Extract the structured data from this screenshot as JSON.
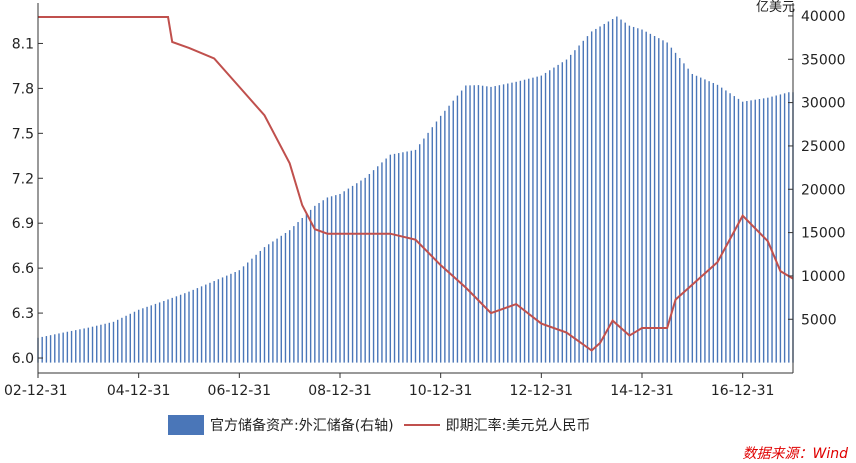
{
  "chart_data": {
    "type": "bar+line",
    "unit_right": "亿美元",
    "source": "数据来源：Wind",
    "legend": {
      "bars": "官方储备资产:外汇储备(右轴)",
      "line": "即期汇率:美元兑人民币"
    },
    "x_ticks": [
      "02-12-31",
      "04-12-31",
      "06-12-31",
      "08-12-31",
      "10-12-31",
      "12-12-31",
      "14-12-31",
      "16-12-31"
    ],
    "y_left": {
      "ticks": [
        6.0,
        6.3,
        6.6,
        6.9,
        7.2,
        7.5,
        7.8,
        8.1
      ],
      "ylim": [
        5.9,
        8.33
      ]
    },
    "y_right": {
      "ticks": [
        5000,
        10000,
        15000,
        20000,
        25000,
        30000,
        35000,
        40000
      ],
      "ylim": [
        -1200,
        40800
      ]
    },
    "series": [
      {
        "name": "官方储备资产:外汇储备(右轴)",
        "type": "bar",
        "axis": "right",
        "points": [
          [
            "2002-12",
            2864
          ],
          [
            "2003-06",
            3465
          ],
          [
            "2003-12",
            4033
          ],
          [
            "2004-06",
            4706
          ],
          [
            "2004-12",
            6099
          ],
          [
            "2005-06",
            7110
          ],
          [
            "2005-12",
            8189
          ],
          [
            "2006-06",
            9411
          ],
          [
            "2006-12",
            10663
          ],
          [
            "2007-06",
            13326
          ],
          [
            "2007-12",
            15282
          ],
          [
            "2008-06",
            18088
          ],
          [
            "2008-09",
            19056
          ],
          [
            "2008-12",
            19460
          ],
          [
            "2009-06",
            21316
          ],
          [
            "2009-12",
            23992
          ],
          [
            "2010-06",
            24543
          ],
          [
            "2010-12",
            28473
          ],
          [
            "2011-06",
            31975
          ],
          [
            "2011-09",
            32017
          ],
          [
            "2011-12",
            31811
          ],
          [
            "2012-06",
            32400
          ],
          [
            "2012-12",
            33116
          ],
          [
            "2013-06",
            34967
          ],
          [
            "2013-12",
            38213
          ],
          [
            "2014-06",
            39932
          ],
          [
            "2014-09",
            38877
          ],
          [
            "2014-12",
            38430
          ],
          [
            "2015-06",
            36938
          ],
          [
            "2015-09",
            35141
          ],
          [
            "2015-12",
            33304
          ],
          [
            "2016-06",
            32052
          ],
          [
            "2016-12",
            30105
          ],
          [
            "2017-06",
            30568
          ],
          [
            "2017-11",
            31193
          ]
        ]
      },
      {
        "name": "即期汇率:美元兑人民币",
        "type": "line",
        "axis": "left",
        "points": [
          [
            "2002-12",
            8.277
          ],
          [
            "2005-07",
            8.277
          ],
          [
            "2005-08",
            8.11
          ],
          [
            "2005-12",
            8.07
          ],
          [
            "2006-06",
            8.0
          ],
          [
            "2006-12",
            7.81
          ],
          [
            "2007-06",
            7.62
          ],
          [
            "2007-12",
            7.3
          ],
          [
            "2008-03",
            7.02
          ],
          [
            "2008-06",
            6.86
          ],
          [
            "2008-09",
            6.83
          ],
          [
            "2009-12",
            6.83
          ],
          [
            "2010-06",
            6.79
          ],
          [
            "2010-12",
            6.62
          ],
          [
            "2011-06",
            6.47
          ],
          [
            "2011-12",
            6.3
          ],
          [
            "2012-06",
            6.36
          ],
          [
            "2012-12",
            6.23
          ],
          [
            "2013-06",
            6.17
          ],
          [
            "2013-12",
            6.05
          ],
          [
            "2014-02",
            6.1
          ],
          [
            "2014-05",
            6.25
          ],
          [
            "2014-09",
            6.15
          ],
          [
            "2014-12",
            6.2
          ],
          [
            "2015-06",
            6.2
          ],
          [
            "2015-08",
            6.39
          ],
          [
            "2015-12",
            6.49
          ],
          [
            "2016-06",
            6.64
          ],
          [
            "2016-12",
            6.95
          ],
          [
            "2017-06",
            6.78
          ],
          [
            "2017-09",
            6.58
          ],
          [
            "2017-12",
            6.53
          ]
        ]
      }
    ],
    "grid": false,
    "legend_position": "bottom"
  }
}
